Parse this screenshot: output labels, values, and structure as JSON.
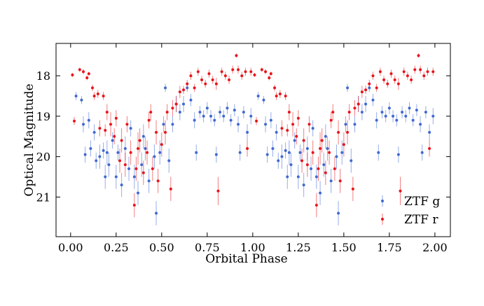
{
  "chart_data": {
    "type": "scatter",
    "title": "",
    "xlabel": "Orbital Phase",
    "ylabel": "Optical Magnitude",
    "xlim": [
      -0.08,
      2.085
    ],
    "ylim": [
      21.98,
      17.2
    ],
    "y_inverted": true,
    "xticks": [
      0.0,
      0.25,
      0.5,
      0.75,
      1.0,
      1.25,
      1.5,
      1.75,
      2.0
    ],
    "xtick_labels": [
      "0.00",
      "0.25",
      "0.50",
      "0.75",
      "1.00",
      "1.25",
      "1.50",
      "1.75",
      "2.00"
    ],
    "yticks": [
      18,
      19,
      20,
      21
    ],
    "ytick_labels": [
      "18",
      "19",
      "20",
      "21"
    ],
    "grid": false,
    "legend_position": "bottom-right",
    "phase_repeated_twice": true,
    "series": [
      {
        "name": "ZTF g",
        "color": "#4169d1",
        "points": [
          [
            0.03,
            18.5,
            0.1
          ],
          [
            0.06,
            18.6,
            0.1
          ],
          [
            0.07,
            19.2,
            0.2
          ],
          [
            0.08,
            19.95,
            0.2
          ],
          [
            0.1,
            19.1,
            0.2
          ],
          [
            0.11,
            19.8,
            0.2
          ],
          [
            0.13,
            19.4,
            0.2
          ],
          [
            0.14,
            20.1,
            0.2
          ],
          [
            0.16,
            20.0,
            0.3
          ],
          [
            0.18,
            19.85,
            0.2
          ],
          [
            0.19,
            20.5,
            0.3
          ],
          [
            0.2,
            19.9,
            0.3
          ],
          [
            0.21,
            20.2,
            0.3
          ],
          [
            0.23,
            19.6,
            0.2
          ],
          [
            0.25,
            20.5,
            0.3
          ],
          [
            0.26,
            19.9,
            0.2
          ],
          [
            0.28,
            20.7,
            0.3
          ],
          [
            0.3,
            19.8,
            0.3
          ],
          [
            0.32,
            20.3,
            0.3
          ],
          [
            0.33,
            19.3,
            0.2
          ],
          [
            0.35,
            20.5,
            0.3
          ],
          [
            0.37,
            20.9,
            0.3
          ],
          [
            0.39,
            20.2,
            0.3
          ],
          [
            0.4,
            19.5,
            0.3
          ],
          [
            0.41,
            19.8,
            0.3
          ],
          [
            0.43,
            20.6,
            0.3
          ],
          [
            0.46,
            20.0,
            0.3
          ],
          [
            0.47,
            21.4,
            0.3
          ],
          [
            0.49,
            19.9,
            0.3
          ],
          [
            0.51,
            19.2,
            0.2
          ],
          [
            0.52,
            18.3,
            0.1
          ],
          [
            0.54,
            20.1,
            0.3
          ],
          [
            0.56,
            19.2,
            0.2
          ],
          [
            0.58,
            18.7,
            0.2
          ],
          [
            0.6,
            18.9,
            0.2
          ],
          [
            0.62,
            18.7,
            0.2
          ],
          [
            0.64,
            18.3,
            0.1
          ],
          [
            0.66,
            18.6,
            0.15
          ],
          [
            0.68,
            19.1,
            0.2
          ],
          [
            0.69,
            19.9,
            0.2
          ],
          [
            0.71,
            18.9,
            0.15
          ],
          [
            0.73,
            19.0,
            0.15
          ],
          [
            0.75,
            18.8,
            0.15
          ],
          [
            0.77,
            19.0,
            0.15
          ],
          [
            0.79,
            19.1,
            0.15
          ],
          [
            0.8,
            19.95,
            0.2
          ],
          [
            0.82,
            18.9,
            0.15
          ],
          [
            0.84,
            19.0,
            0.15
          ],
          [
            0.86,
            18.8,
            0.15
          ],
          [
            0.88,
            19.1,
            0.15
          ],
          [
            0.9,
            18.85,
            0.15
          ],
          [
            0.92,
            19.2,
            0.2
          ],
          [
            0.93,
            19.9,
            0.2
          ],
          [
            0.95,
            18.9,
            0.15
          ],
          [
            0.97,
            19.4,
            0.2
          ],
          [
            0.99,
            19.0,
            0.2
          ]
        ]
      },
      {
        "name": "ZTF r",
        "color": "#e8141a",
        "points": [
          [
            0.01,
            17.98,
            0.05
          ],
          [
            0.02,
            19.12,
            0.1
          ],
          [
            0.05,
            17.85,
            0.05
          ],
          [
            0.07,
            17.9,
            0.06
          ],
          [
            0.09,
            18.05,
            0.06
          ],
          [
            0.1,
            17.95,
            0.05
          ],
          [
            0.12,
            18.3,
            0.08
          ],
          [
            0.13,
            18.5,
            0.1
          ],
          [
            0.15,
            18.45,
            0.1
          ],
          [
            0.16,
            19.3,
            0.2
          ],
          [
            0.18,
            18.5,
            0.1
          ],
          [
            0.19,
            19.35,
            0.15
          ],
          [
            0.2,
            18.9,
            0.2
          ],
          [
            0.22,
            19.2,
            0.3
          ],
          [
            0.24,
            19.5,
            0.2
          ],
          [
            0.25,
            19.05,
            0.2
          ],
          [
            0.27,
            20.1,
            0.3
          ],
          [
            0.28,
            19.6,
            0.3
          ],
          [
            0.3,
            20.2,
            0.3
          ],
          [
            0.31,
            19.2,
            0.2
          ],
          [
            0.33,
            19.9,
            0.3
          ],
          [
            0.35,
            21.2,
            0.3
          ],
          [
            0.36,
            20.3,
            0.3
          ],
          [
            0.37,
            19.8,
            0.4
          ],
          [
            0.38,
            19.6,
            0.3
          ],
          [
            0.4,
            20.4,
            0.3
          ],
          [
            0.42,
            19.9,
            0.3
          ],
          [
            0.43,
            19.1,
            0.2
          ],
          [
            0.44,
            18.9,
            0.2
          ],
          [
            0.45,
            20.3,
            0.3
          ],
          [
            0.47,
            19.4,
            0.3
          ],
          [
            0.48,
            20.6,
            0.3
          ],
          [
            0.5,
            19.7,
            0.3
          ],
          [
            0.52,
            19.4,
            0.3
          ],
          [
            0.53,
            18.9,
            0.2
          ],
          [
            0.55,
            20.8,
            0.3
          ],
          [
            0.56,
            18.8,
            0.2
          ],
          [
            0.58,
            18.7,
            0.2
          ],
          [
            0.6,
            18.4,
            0.15
          ],
          [
            0.62,
            18.35,
            0.1
          ],
          [
            0.64,
            18.2,
            0.1
          ],
          [
            0.66,
            18.0,
            0.1
          ],
          [
            0.68,
            18.3,
            0.1
          ],
          [
            0.7,
            17.9,
            0.1
          ],
          [
            0.72,
            18.1,
            0.1
          ],
          [
            0.74,
            18.2,
            0.1
          ],
          [
            0.76,
            17.95,
            0.1
          ],
          [
            0.78,
            18.1,
            0.1
          ],
          [
            0.8,
            18.2,
            0.15
          ],
          [
            0.81,
            20.85,
            0.35
          ],
          [
            0.83,
            17.9,
            0.1
          ],
          [
            0.85,
            18.0,
            0.1
          ],
          [
            0.87,
            18.1,
            0.1
          ],
          [
            0.89,
            17.85,
            0.1
          ],
          [
            0.91,
            17.5,
            0.05
          ],
          [
            0.92,
            17.85,
            0.1
          ],
          [
            0.94,
            18.0,
            0.1
          ],
          [
            0.96,
            17.9,
            0.1
          ],
          [
            0.97,
            19.8,
            0.2
          ],
          [
            0.99,
            17.9,
            0.1
          ]
        ]
      }
    ]
  }
}
